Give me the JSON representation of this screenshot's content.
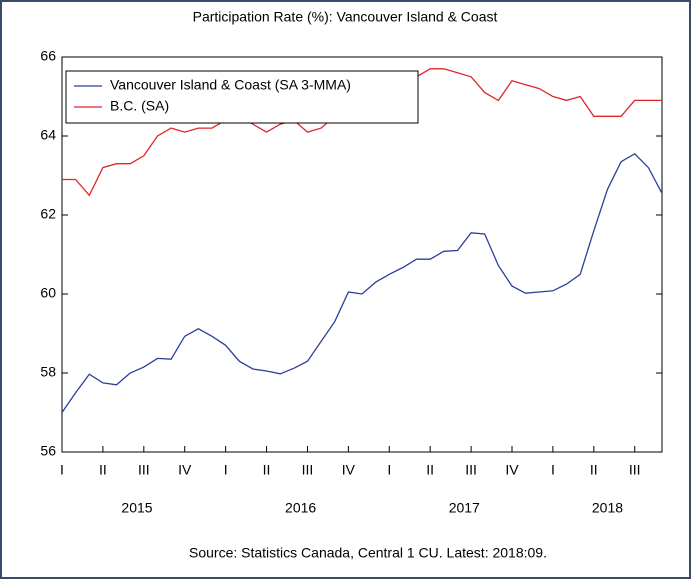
{
  "chart_data": {
    "type": "line",
    "title": "Participation Rate (%): Vancouver Island & Coast",
    "source": "Source: Statistics Canada, Central 1 CU. Latest: 2018:09.",
    "categories": [
      "I",
      null,
      null,
      "II",
      null,
      null,
      "III",
      null,
      null,
      "IV",
      null,
      null,
      "I",
      null,
      null,
      "II",
      null,
      null,
      "III",
      null,
      null,
      "IV",
      null,
      null,
      "I",
      null,
      null,
      "II",
      null,
      null,
      "III",
      null,
      null,
      "IV",
      null,
      null,
      "I",
      null,
      null,
      "II",
      null,
      null,
      "III",
      null,
      null
    ],
    "years": [
      "2015",
      "2016",
      "2017",
      "2018"
    ],
    "series": [
      {
        "name": "Vancouver Island & Coast (SA 3-MMA)",
        "color": "#2e3f99",
        "values": [
          57.0,
          57.5,
          57.97,
          57.75,
          57.7,
          58.0,
          58.15,
          58.37,
          58.35,
          58.93,
          59.12,
          58.93,
          58.7,
          58.3,
          58.1,
          58.05,
          57.98,
          58.12,
          58.3,
          58.8,
          59.3,
          60.05,
          60.0,
          60.3,
          60.5,
          60.67,
          60.88,
          60.88,
          61.08,
          61.1,
          61.55,
          61.52,
          60.72,
          60.2,
          60.02,
          60.05,
          60.08,
          60.25,
          60.5,
          61.6,
          62.65,
          63.35,
          63.55,
          63.2,
          62.55
        ]
      },
      {
        "name": "B.C. (SA)",
        "color": "#e0262a",
        "values": [
          62.9,
          62.9,
          62.5,
          63.2,
          63.3,
          63.3,
          63.5,
          64.0,
          64.2,
          64.1,
          64.2,
          64.2,
          64.4,
          64.5,
          64.3,
          64.1,
          64.3,
          64.4,
          64.1,
          64.2,
          64.5,
          64.7,
          64.9,
          65.1,
          65.3,
          65.5,
          65.5,
          65.7,
          65.7,
          65.6,
          65.5,
          65.1,
          64.9,
          65.4,
          65.3,
          65.2,
          65.0,
          64.9,
          65.0,
          64.5,
          64.5,
          64.5,
          64.9,
          64.9,
          64.9
        ]
      }
    ],
    "ylim": [
      56,
      66
    ],
    "yticks": [
      56,
      58,
      60,
      62,
      64,
      66
    ],
    "legend": "upper left",
    "grid": false
  }
}
